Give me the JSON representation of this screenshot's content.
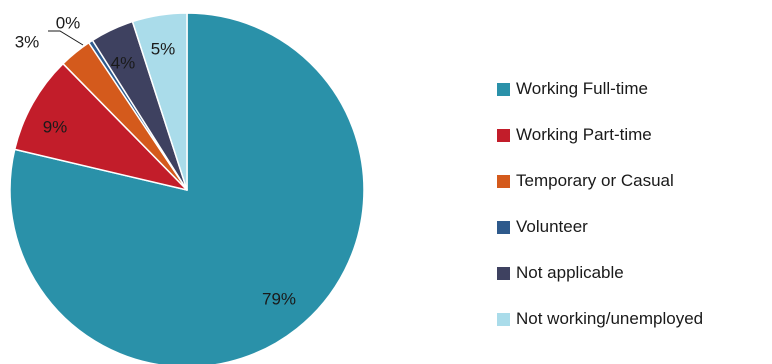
{
  "chart_data": {
    "type": "pie",
    "title": "",
    "start_angle_deg": 0,
    "direction": "clockwise",
    "legend_position": "right",
    "slices": [
      {
        "name": "Working Full-time",
        "value": 79,
        "label": "79%",
        "color": "#2a91a9"
      },
      {
        "name": "Working Part-time",
        "value": 9,
        "label": "9%",
        "color": "#c21d2a"
      },
      {
        "name": "Temporary or Casual",
        "value": 3,
        "label": "3%",
        "color": "#d45a1c"
      },
      {
        "name": "Volunteer",
        "value": 0.4,
        "label": "0%",
        "color": "#2e5a8c"
      },
      {
        "name": "Not applicable",
        "value": 4,
        "label": "4%",
        "color": "#3e4160"
      },
      {
        "name": "Not working/unemployed",
        "value": 5,
        "label": "5%",
        "color": "#aadcea"
      }
    ]
  }
}
